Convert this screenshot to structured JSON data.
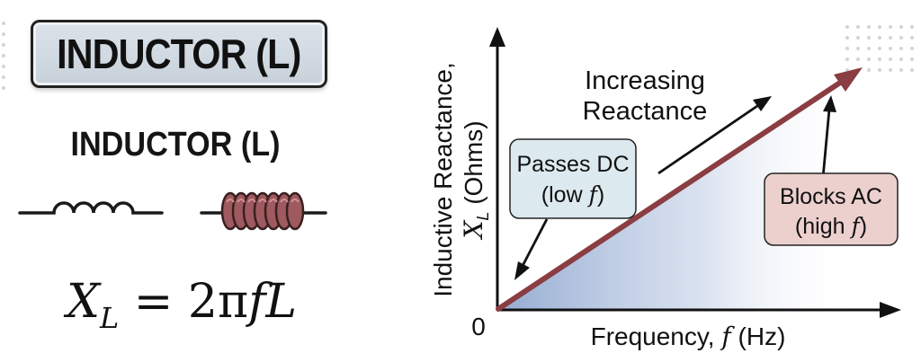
{
  "left_panel": {
    "title": "INDUCTOR (L)",
    "subtitle": "INDUCTOR (L)",
    "formula": {
      "lhs_symbol": "X",
      "lhs_subscript": "L",
      "equals": " = ",
      "coefficient": "2π",
      "variable_f": "f",
      "variable_l": "L"
    }
  },
  "graph": {
    "origin_label": "0",
    "x_axis_label": {
      "prefix": "Frequency, ",
      "symbol": "f",
      "suffix": " (Hz)"
    },
    "y_axis_label": {
      "line1": "Inductive Reactance,",
      "symbol": "X",
      "subscript": "L",
      "suffix": " (Ohms)"
    },
    "trend_label": {
      "line1": "Increasing",
      "line2": "Reactance"
    },
    "dc_callout": {
      "line1": "Passes DC",
      "line2_prefix": "(low ",
      "symbol": "f",
      "line2_suffix": ")"
    },
    "ac_callout": {
      "line1": "Blocks AC",
      "line2_prefix": "(high ",
      "symbol": "f",
      "line2_suffix": ")"
    }
  },
  "colors": {
    "reactance_line": "#8a3d42",
    "fill_gradient_start": "#8fa8d0",
    "dc_callout_bg": "#dce9ee",
    "ac_callout_bg": "#ecd0ce",
    "title_box_bg": "#d2dae3"
  }
}
